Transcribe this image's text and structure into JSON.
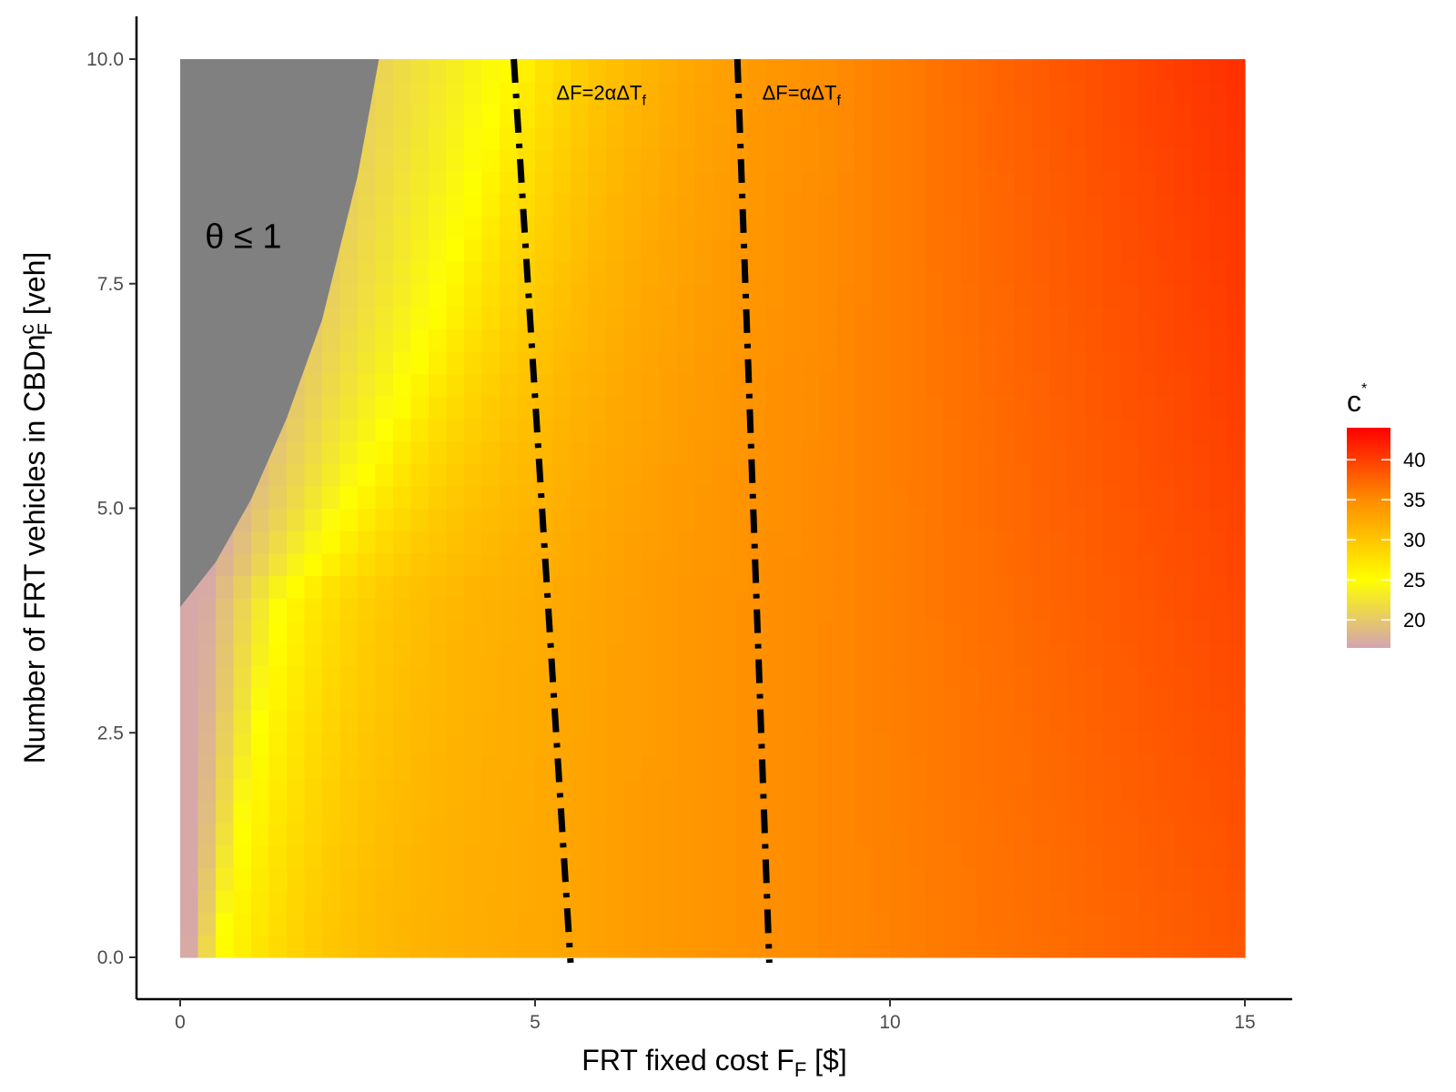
{
  "chart_data": {
    "type": "heatmap",
    "title": "",
    "x": {
      "label_prefix": "FRT fixed cost F",
      "label_subscript": "F",
      "label_suffix": " [$]",
      "range": [
        0,
        15
      ],
      "ticks": [
        0,
        5,
        10,
        15
      ],
      "tick_labels": [
        "0",
        "5",
        "10",
        "15"
      ]
    },
    "y": {
      "label_prefix": "Number of FRT vehicles in CBDn",
      "label_superscript": "c",
      "label_subscript": "F",
      "label_suffix": " [veh]",
      "range": [
        0,
        10
      ],
      "ticks": [
        0,
        2.5,
        5,
        7.5,
        10
      ],
      "tick_labels": [
        "0.0",
        "2.5",
        "5.0",
        "7.5",
        "10.0"
      ]
    },
    "fill": {
      "legend_title": "c",
      "legend_title_superscript": "*",
      "range": [
        16.5,
        44
      ],
      "ticks": [
        20,
        25,
        30,
        35,
        40
      ],
      "tick_labels": [
        "20",
        "25",
        "30",
        "35",
        "40"
      ],
      "colors": [
        "#d4a3b2",
        "#ffff00",
        "#ff8c00",
        "#ff0000"
      ],
      "color_stops": [
        16.5,
        25,
        35,
        44
      ]
    },
    "grey_region": {
      "label": "θ ≤ 1",
      "color": "#808080",
      "boundary_x": [
        0,
        0.5,
        1,
        1.5,
        2,
        2.5,
        2.8
      ],
      "boundary_y": [
        3.9,
        4.4,
        5.1,
        6.0,
        7.1,
        8.7,
        10
      ]
    },
    "reference_lines": [
      {
        "label_text": "ΔF=2αΔT",
        "label_subscript": "f",
        "x_at_y0": 5.5,
        "x_at_y10": 4.7,
        "label_x": 5.3,
        "label_y": 9.55
      },
      {
        "label_text": "ΔF=αΔT",
        "label_subscript": "f",
        "x_at_y0": 8.3,
        "x_at_y10": 7.85,
        "label_x": 8.2,
        "label_y": 9.55
      }
    ],
    "grid": false,
    "legend_position": "right"
  }
}
